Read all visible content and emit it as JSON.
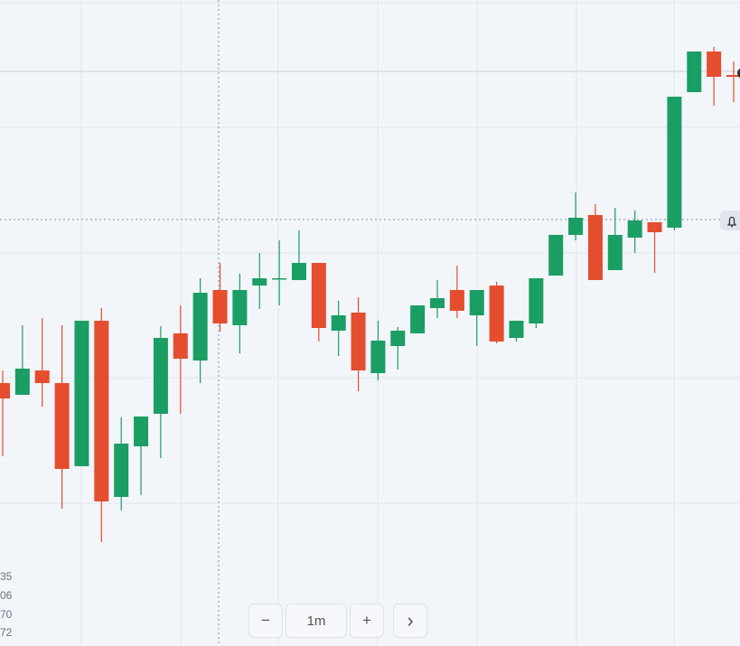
{
  "chart_data": {
    "type": "candlestick",
    "up_color": "#1a9e63",
    "down_color": "#e44d2e",
    "ylim": [
      0,
      715
    ],
    "open": [
      291,
      278,
      305,
      291,
      199,
      360,
      165,
      221,
      257,
      346,
      316,
      394,
      355,
      399,
      406,
      405,
      424,
      349,
      369,
      302,
      332,
      346,
      374,
      394,
      366,
      399,
      341,
      357,
      410,
      455,
      477,
      416,
      452,
      469,
      463,
      613,
      658,
      632
    ],
    "high": [
      305,
      355,
      363,
      355,
      360,
      374,
      253,
      254,
      354,
      377,
      407,
      424,
      412,
      435,
      449,
      460,
      424,
      382,
      386,
      360,
      353,
      377,
      405,
      421,
      394,
      403,
      360,
      407,
      455,
      502,
      489,
      485,
      482,
      469,
      608,
      658,
      663,
      647
    ],
    "low": [
      210,
      278,
      265,
      152,
      199,
      115,
      150,
      167,
      208,
      257,
      291,
      348,
      324,
      373,
      377,
      405,
      337,
      321,
      282,
      294,
      306,
      346,
      363,
      363,
      332,
      335,
      337,
      352,
      410,
      449,
      405,
      416,
      435,
      413,
      460,
      613,
      598,
      602
    ],
    "close": [
      274,
      307,
      291,
      196,
      360,
      160,
      224,
      254,
      341,
      318,
      391,
      357,
      394,
      407,
      407,
      424,
      352,
      366,
      305,
      338,
      349,
      377,
      385,
      371,
      394,
      337,
      360,
      407,
      455,
      474,
      405,
      455,
      471,
      458,
      608,
      658,
      630,
      630
    ]
  },
  "axis_fragments": [
    "35",
    "06",
    "70",
    "72"
  ],
  "toolbar": {
    "zoom_out": "−",
    "interval": "1m",
    "zoom_in": "+",
    "next": "›"
  }
}
